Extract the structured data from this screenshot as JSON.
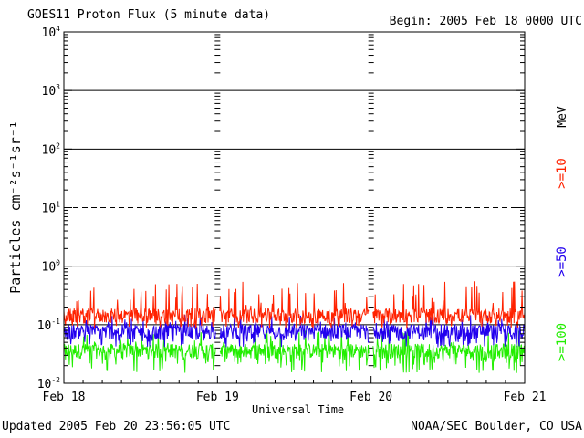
{
  "header": {
    "title": "GOES11 Proton Flux (5 minute data)",
    "begin": "Begin: 2005 Feb 18 0000 UTC"
  },
  "footer": {
    "updated": "Updated 2005 Feb 20 23:56:05 UTC",
    "credit": "NOAA/SEC Boulder, CO USA"
  },
  "chart_data": {
    "type": "line",
    "title": "GOES11 Proton Flux (5 minute data)",
    "xlabel": "Universal Time",
    "ylabel": "Particles cm⁻²s⁻¹sr⁻¹",
    "yscale": "log",
    "ylim": [
      0.01,
      10000
    ],
    "y_ticks": [
      {
        "base": "10",
        "exp": "-2"
      },
      {
        "base": "10",
        "exp": "-1"
      },
      {
        "base": "10",
        "exp": "0"
      },
      {
        "base": "10",
        "exp": "1"
      },
      {
        "base": "10",
        "exp": "2"
      },
      {
        "base": "10",
        "exp": "3"
      },
      {
        "base": "10",
        "exp": "4"
      }
    ],
    "x_ticks": [
      "Feb 18",
      "Feb 19",
      "Feb 20",
      "Feb 21"
    ],
    "xlim_days": [
      0,
      3
    ],
    "reference_lines": [
      {
        "value": 10,
        "style": "dashed"
      },
      {
        "value": 1000,
        "style": "solid"
      },
      {
        "value": 100,
        "style": "solid"
      },
      {
        "value": 1,
        "style": "solid"
      },
      {
        "value": 0.1,
        "style": "solid"
      }
    ],
    "grid": false,
    "legend_placement": "right, vertical",
    "unit_label": "MeV",
    "series": [
      {
        "name": ">=10",
        "color": "#ff2200",
        "typical": 0.14,
        "spike_max": 0.55,
        "floor": 0.085
      },
      {
        "name": ">=50",
        "color": "#2200ee",
        "typical": 0.075,
        "spike_max": 0.15,
        "floor": 0.04
      },
      {
        "name": ">=100",
        "color": "#22ee00",
        "typical": 0.035,
        "spike_max": 0.085,
        "floor": 0.015
      }
    ]
  }
}
